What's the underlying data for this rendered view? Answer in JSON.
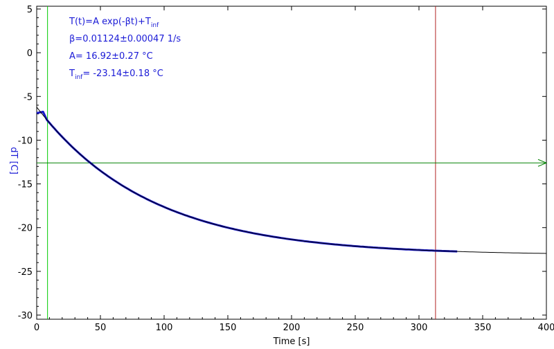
{
  "chart_data": {
    "type": "scatter",
    "xlabel": "Time [s]",
    "ylabel": "dT [C]",
    "xlim": [
      0,
      400
    ],
    "ylim": [
      -30,
      5
    ],
    "xticks": [
      0,
      50,
      100,
      150,
      200,
      250,
      300,
      350,
      400
    ],
    "yticks": [
      5,
      0,
      -5,
      -10,
      -15,
      -20,
      -25,
      -30
    ],
    "grid": false,
    "fit": {
      "equation_main": "T(t)=A exp(-βt)+T",
      "equation_sub": "inf",
      "beta_text": "β=0.01124±0.00047 1/s",
      "A_text": "A= 16.92±0.27 °C",
      "tinf_main": "T",
      "tinf_sub": "inf",
      "tinf_rest": "= -23.14±0.18 °C",
      "beta": 0.01124,
      "A": 16.92,
      "T_inf": -23.14,
      "x_range": [
        0,
        400
      ]
    },
    "measured": {
      "x_range": [
        0,
        330
      ],
      "start": [
        [
          0,
          -6.9
        ],
        [
          5,
          -6.75
        ]
      ]
    },
    "markers": {
      "green_vertical_x": 8.5,
      "red_vertical_x": 313,
      "horizontal_y": -12.6
    },
    "colors": {
      "data": "#1818c8",
      "fit": "#000000",
      "green_line": "#00cc00",
      "red_line": "#b22222",
      "horizontal_line": "#008000",
      "text": "#1a1ad6"
    }
  }
}
